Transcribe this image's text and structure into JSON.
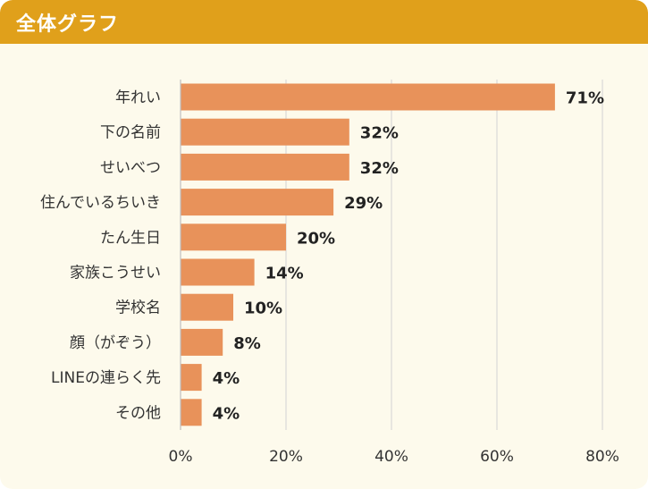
{
  "header": {
    "title": "全体グラフ"
  },
  "colors": {
    "header": "#e0a01b",
    "bar": "#e8925a",
    "background": "#fdfaec",
    "grid": "#d9d9d9"
  },
  "chart_data": {
    "type": "bar",
    "orientation": "horizontal",
    "categories": [
      "年れい",
      "下の名前",
      "せいべつ",
      "住んでいるちいき",
      "たん生日",
      "家族こうせい",
      "学校名",
      "顔（がぞう）",
      "LINEの連らく先",
      "その他"
    ],
    "values": [
      71,
      32,
      32,
      29,
      20,
      14,
      10,
      8,
      4,
      4
    ],
    "value_labels": [
      "71%",
      "32%",
      "32%",
      "29%",
      "20%",
      "14%",
      "10%",
      "8%",
      "4%",
      "4%"
    ],
    "xlim": [
      0,
      80
    ],
    "xticks": [
      0,
      20,
      40,
      60,
      80
    ],
    "xtick_labels": [
      "0%",
      "20%",
      "40%",
      "60%",
      "80%"
    ],
    "grid": true
  }
}
